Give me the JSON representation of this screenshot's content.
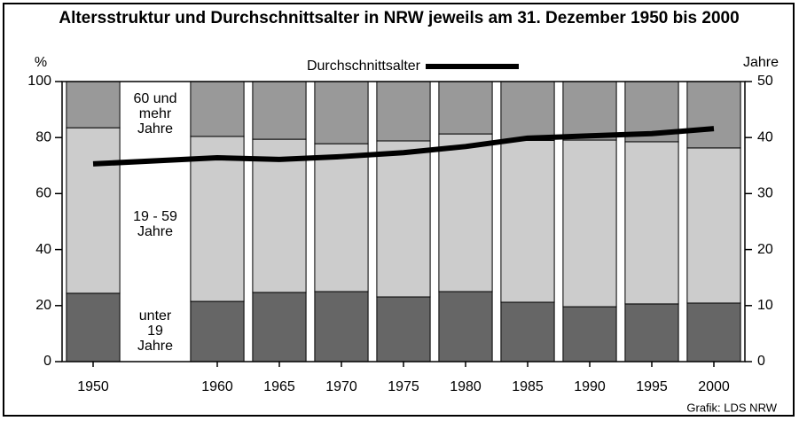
{
  "chart_data": {
    "type": "bar",
    "stacked": true,
    "title": "Altersstruktur und Durchschnittsalter in NRW jeweils am 31. Dezember 1950 bis 2000",
    "ylabel": "%",
    "y2label": "Jahre",
    "source": "Grafik: LDS NRW",
    "x": [
      1950,
      1960,
      1965,
      1970,
      1975,
      1980,
      1985,
      1990,
      1995,
      2000
    ],
    "xlim": [
      1947.5,
      2002.5
    ],
    "xticks": [
      1950,
      1960,
      1965,
      1970,
      1975,
      1980,
      1985,
      1990,
      1995,
      2000
    ],
    "ylim": [
      0,
      100
    ],
    "yticks": [
      0,
      20,
      40,
      60,
      80,
      100
    ],
    "y2lim": [
      0,
      50
    ],
    "y2ticks": [
      0,
      10,
      20,
      30,
      40,
      50
    ],
    "grid": false,
    "series": [
      {
        "name": "unter 19 Jahre",
        "color": "#666666",
        "values": [
          24.4,
          21.5,
          24.7,
          25.0,
          23.1,
          25.0,
          21.2,
          19.6,
          20.6,
          20.9
        ]
      },
      {
        "name": "19 - 59 Jahre",
        "color": "#cccccc",
        "values": [
          59.1,
          58.9,
          54.7,
          52.8,
          55.7,
          56.3,
          57.8,
          59.5,
          57.9,
          55.4
        ]
      },
      {
        "name": "60 und mehr Jahre",
        "color": "#999999",
        "values": [
          16.5,
          19.6,
          20.6,
          22.2,
          21.2,
          18.7,
          21.0,
          20.9,
          21.5,
          23.7
        ]
      },
      {
        "name": "Durchschnittsalter",
        "color": "#000000",
        "type": "line",
        "axis": "y2",
        "values": [
          35.3,
          36.4,
          36.1,
          36.6,
          37.3,
          38.4,
          39.9,
          40.3,
          40.7,
          41.6
        ]
      }
    ]
  }
}
